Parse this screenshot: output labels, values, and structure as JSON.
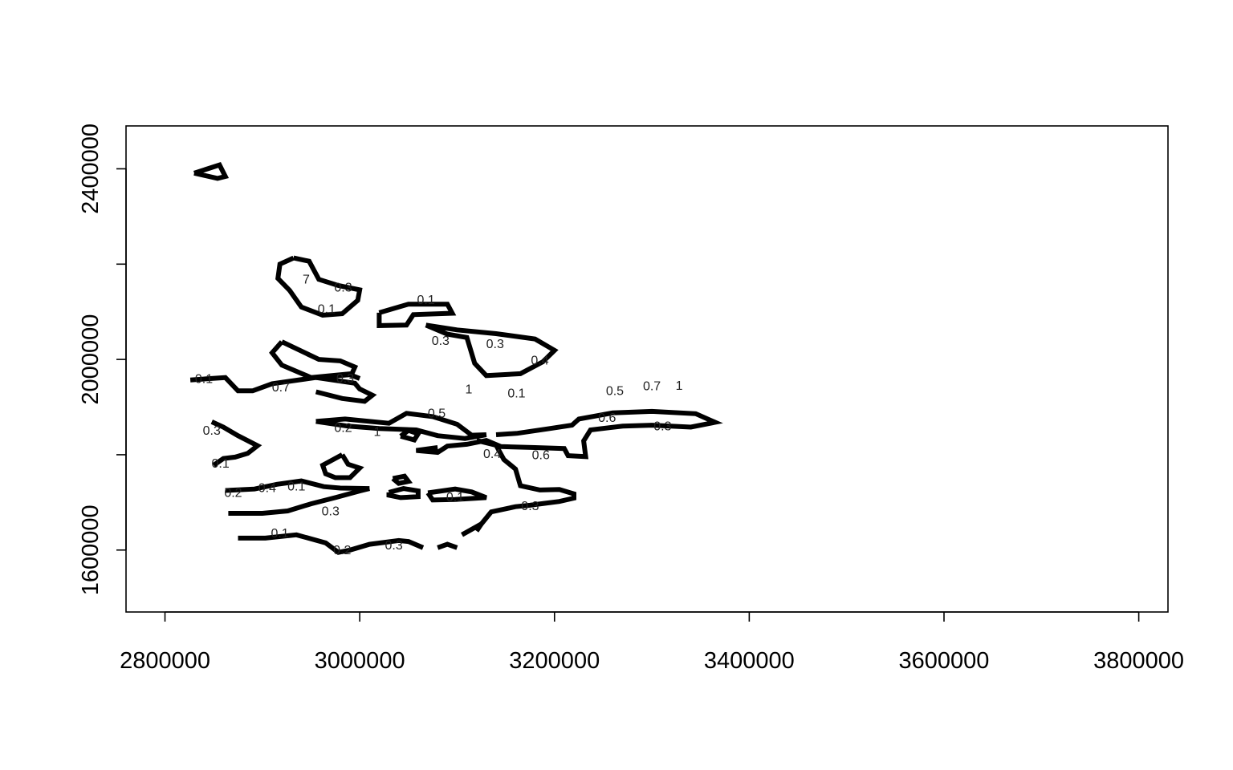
{
  "chart_data": {
    "type": "contour",
    "title": "",
    "xlabel": "",
    "ylabel": "",
    "xlim": [
      2760000,
      3830000
    ],
    "ylim": [
      1470000,
      2490000
    ],
    "x_ticks": [
      2800000,
      3000000,
      3200000,
      3400000,
      3600000,
      3800000
    ],
    "y_ticks": [
      1600000,
      2000000,
      2400000
    ],
    "y_minor_ticks": [
      1800000,
      2200000
    ],
    "x_tick_labels": [
      "2800000",
      "3000000",
      "3200000",
      "3400000",
      "3600000",
      "3800000"
    ],
    "y_tick_labels": [
      "1600000",
      "2000000",
      "2400000"
    ],
    "grid": false,
    "line_color": "#000000",
    "contours": [
      {
        "points": [
          [
            2830000,
            2391000
          ],
          [
            2856000,
            2408000
          ],
          [
            2862000,
            2384000
          ],
          [
            2854000,
            2380000
          ],
          [
            2830000,
            2391000
          ]
        ]
      },
      {
        "points": [
          [
            2932000,
            2213000
          ],
          [
            2948000,
            2206000
          ],
          [
            2958000,
            2168000
          ],
          [
            2978000,
            2155000
          ],
          [
            3000000,
            2146000
          ],
          [
            2998000,
            2124000
          ],
          [
            2982000,
            2096000
          ],
          [
            2962000,
            2093000
          ],
          [
            2940000,
            2110000
          ],
          [
            2928000,
            2145000
          ],
          [
            2916000,
            2170000
          ],
          [
            2918000,
            2200000
          ],
          [
            2932000,
            2213000
          ]
        ]
      },
      {
        "points": [
          [
            3020000,
            2098000
          ],
          [
            3050000,
            2116000
          ],
          [
            3090000,
            2116000
          ],
          [
            3095000,
            2097000
          ],
          [
            3055000,
            2094000
          ],
          [
            3048000,
            2072000
          ],
          [
            3020000,
            2071000
          ],
          [
            3020000,
            2098000
          ]
        ]
      },
      {
        "points": [
          [
            3068000,
            2072000
          ],
          [
            3100000,
            2062000
          ],
          [
            3140000,
            2054000
          ],
          [
            3180000,
            2043000
          ],
          [
            3200000,
            2019000
          ],
          [
            3188000,
            1995000
          ],
          [
            3165000,
            1970000
          ],
          [
            3130000,
            1966000
          ],
          [
            3118000,
            1992000
          ],
          [
            3110000,
            2046000
          ],
          [
            3090000,
            2053000
          ],
          [
            3068000,
            2072000
          ]
        ]
      },
      {
        "points": [
          [
            2920000,
            2037000
          ],
          [
            2958000,
            2000000
          ],
          [
            2980000,
            1997000
          ],
          [
            2995000,
            1984000
          ],
          [
            2992000,
            1970000
          ],
          [
            2950000,
            1962000
          ],
          [
            2920000,
            1988000
          ],
          [
            2910000,
            2014000
          ],
          [
            2920000,
            2037000
          ]
        ]
      },
      {
        "points": [
          [
            2826000,
            1957000
          ],
          [
            2862000,
            1962000
          ],
          [
            2875000,
            1934000
          ],
          [
            2890000,
            1934000
          ],
          [
            2910000,
            1949000
          ],
          [
            2955000,
            1962000
          ],
          [
            2990000,
            1968000
          ],
          [
            3000000,
            1960000
          ]
        ]
      },
      {
        "points": [
          [
            2955000,
            1962000
          ],
          [
            2995000,
            1950000
          ],
          [
            3000000,
            1938000
          ],
          [
            3013000,
            1925000
          ],
          [
            3005000,
            1912000
          ],
          [
            2982000,
            1918000
          ],
          [
            2955000,
            1932000
          ]
        ]
      },
      {
        "points": [
          [
            2955000,
            1870000
          ],
          [
            2985000,
            1875000
          ],
          [
            3030000,
            1866000
          ],
          [
            3048000,
            1887000
          ],
          [
            3075000,
            1880000
          ],
          [
            3100000,
            1864000
          ],
          [
            3115000,
            1841000
          ],
          [
            3130000,
            1842000
          ],
          [
            3108000,
            1834000
          ],
          [
            3080000,
            1840000
          ],
          [
            3058000,
            1852000
          ],
          [
            3020000,
            1855000
          ],
          [
            2988000,
            1860000
          ],
          [
            2955000,
            1870000
          ]
        ]
      },
      {
        "points": [
          [
            3042000,
            1839000
          ],
          [
            3056000,
            1831000
          ],
          [
            3060000,
            1844000
          ],
          [
            3050000,
            1851000
          ],
          [
            3042000,
            1839000
          ]
        ]
      },
      {
        "points": [
          [
            3140000,
            1842000
          ],
          [
            3162000,
            1845000
          ],
          [
            3195000,
            1855000
          ],
          [
            3218000,
            1862000
          ],
          [
            3225000,
            1875000
          ],
          [
            3260000,
            1888000
          ],
          [
            3300000,
            1891000
          ],
          [
            3345000,
            1886000
          ],
          [
            3365000,
            1868000
          ],
          [
            3340000,
            1858000
          ],
          [
            3300000,
            1862000
          ],
          [
            3270000,
            1860000
          ],
          [
            3237000,
            1852000
          ],
          [
            3230000,
            1829000
          ],
          [
            3232000,
            1796000
          ],
          [
            3214000,
            1798000
          ],
          [
            3210000,
            1813000
          ],
          [
            3180000,
            1815000
          ],
          [
            3145000,
            1817000
          ],
          [
            3130000,
            1830000
          ],
          [
            3110000,
            1822000
          ],
          [
            3090000,
            1818000
          ],
          [
            3080000,
            1805000
          ],
          [
            3058000,
            1809000
          ],
          [
            3080000,
            1815000
          ]
        ]
      },
      {
        "points": [
          [
            3120000,
            1830000
          ],
          [
            3140000,
            1820000
          ],
          [
            3148000,
            1790000
          ],
          [
            3160000,
            1770000
          ],
          [
            3165000,
            1735000
          ],
          [
            3185000,
            1726000
          ],
          [
            3205000,
            1727000
          ],
          [
            3220000,
            1718000
          ],
          [
            3220000,
            1709000
          ],
          [
            3205000,
            1702000
          ],
          [
            3190000,
            1698000
          ],
          [
            3175000,
            1694000
          ],
          [
            3160000,
            1691000
          ],
          [
            3135000,
            1680000
          ],
          [
            3125000,
            1655000
          ],
          [
            3120000,
            1640000
          ]
        ]
      },
      {
        "points": [
          [
            2982000,
            1800000
          ],
          [
            2988000,
            1780000
          ],
          [
            3000000,
            1772000
          ],
          [
            2990000,
            1752000
          ],
          [
            2975000,
            1752000
          ],
          [
            2965000,
            1760000
          ],
          [
            2962000,
            1778000
          ],
          [
            2982000,
            1800000
          ]
        ]
      },
      {
        "points": [
          [
            3034000,
            1750000
          ],
          [
            3046000,
            1755000
          ],
          [
            3050000,
            1744000
          ],
          [
            3040000,
            1740000
          ],
          [
            3034000,
            1750000
          ]
        ]
      },
      {
        "points": [
          [
            3030000,
            1721000
          ],
          [
            3045000,
            1729000
          ],
          [
            3060000,
            1724000
          ],
          [
            3060000,
            1712000
          ],
          [
            3042000,
            1710000
          ],
          [
            3030000,
            1715000
          ],
          [
            3030000,
            1721000
          ]
        ]
      },
      {
        "points": [
          [
            3070000,
            1720000
          ],
          [
            3098000,
            1728000
          ],
          [
            3115000,
            1722000
          ],
          [
            3130000,
            1710000
          ],
          [
            3098000,
            1706000
          ],
          [
            3075000,
            1705000
          ],
          [
            3070000,
            1720000
          ]
        ]
      },
      {
        "points": [
          [
            2862000,
            1725000
          ],
          [
            2892000,
            1728000
          ],
          [
            2915000,
            1738000
          ],
          [
            2940000,
            1745000
          ],
          [
            2963000,
            1733000
          ],
          [
            2980000,
            1730000
          ],
          [
            3010000,
            1729000
          ]
        ]
      },
      {
        "points": [
          [
            2865000,
            1677000
          ],
          [
            2900000,
            1677000
          ],
          [
            2926000,
            1682000
          ],
          [
            2950000,
            1697000
          ],
          [
            2975000,
            1710000
          ],
          [
            3000000,
            1724000
          ],
          [
            3010000,
            1729000
          ]
        ]
      },
      {
        "points": [
          [
            2875000,
            1625000
          ],
          [
            2903000,
            1625000
          ],
          [
            2935000,
            1632000
          ],
          [
            2965000,
            1615000
          ],
          [
            2978000,
            1595000
          ],
          [
            2990000,
            1600000
          ],
          [
            3010000,
            1612000
          ],
          [
            3040000,
            1620000
          ],
          [
            3050000,
            1618000
          ],
          [
            3065000,
            1605000
          ]
        ]
      },
      {
        "points": [
          [
            3080000,
            1605000
          ],
          [
            3090000,
            1612000
          ],
          [
            3100000,
            1605000
          ]
        ]
      },
      {
        "points": [
          [
            2848000,
            1869000
          ],
          [
            2860000,
            1858000
          ],
          [
            2875000,
            1840000
          ],
          [
            2895000,
            1819000
          ],
          [
            2885000,
            1803000
          ],
          [
            2872000,
            1795000
          ],
          [
            2860000,
            1792000
          ],
          [
            2850000,
            1778000
          ]
        ]
      },
      {
        "points": [
          [
            3105000,
            1632000
          ],
          [
            3125000,
            1655000
          ]
        ]
      }
    ],
    "contour_labels": [
      {
        "text": "0.1",
        "x": 2840000,
        "y": 1959000
      },
      {
        "text": "0.7",
        "x": 2919000,
        "y": 1941000
      },
      {
        "text": "0.3",
        "x": 2985000,
        "y": 1960000
      },
      {
        "text": "0.3",
        "x": 2848000,
        "y": 1850000
      },
      {
        "text": "0.1",
        "x": 2857000,
        "y": 1781000
      },
      {
        "text": "0.2",
        "x": 2870000,
        "y": 1720000
      },
      {
        "text": "0.4",
        "x": 2905000,
        "y": 1730000
      },
      {
        "text": "0.1",
        "x": 2935000,
        "y": 1733000
      },
      {
        "text": "0.3",
        "x": 2970000,
        "y": 1681000
      },
      {
        "text": "0.1",
        "x": 2918000,
        "y": 1635000
      },
      {
        "text": "0.2",
        "x": 2982000,
        "y": 1600000
      },
      {
        "text": "0.3",
        "x": 3035000,
        "y": 1610000
      },
      {
        "text": "0.2",
        "x": 2983000,
        "y": 1856000
      },
      {
        "text": "1",
        "x": 3018000,
        "y": 1848000
      },
      {
        "text": "7",
        "x": 2945000,
        "y": 2168000
      },
      {
        "text": "0.3",
        "x": 2983000,
        "y": 2151000
      },
      {
        "text": "0.1",
        "x": 2966000,
        "y": 2105000
      },
      {
        "text": "0.1",
        "x": 3068000,
        "y": 2125000
      },
      {
        "text": "0.3",
        "x": 3083000,
        "y": 2039000
      },
      {
        "text": "0.3",
        "x": 3139000,
        "y": 2032000
      },
      {
        "text": "0.4",
        "x": 3185000,
        "y": 1998000
      },
      {
        "text": "1",
        "x": 3112000,
        "y": 1937000
      },
      {
        "text": "0.1",
        "x": 3161000,
        "y": 1929000
      },
      {
        "text": "0.5",
        "x": 3079000,
        "y": 1887000
      },
      {
        "text": "0.5",
        "x": 3262000,
        "y": 1934000
      },
      {
        "text": "0.7",
        "x": 3300000,
        "y": 1944000
      },
      {
        "text": "1",
        "x": 3328000,
        "y": 1945000
      },
      {
        "text": "0.6",
        "x": 3254000,
        "y": 1877000
      },
      {
        "text": "0.3",
        "x": 3311000,
        "y": 1860000
      },
      {
        "text": "0.4",
        "x": 3136000,
        "y": 1802000
      },
      {
        "text": "0.6",
        "x": 3186000,
        "y": 1799000
      },
      {
        "text": "0.1",
        "x": 3098000,
        "y": 1711000
      },
      {
        "text": "0.3",
        "x": 3175000,
        "y": 1692000
      }
    ]
  }
}
